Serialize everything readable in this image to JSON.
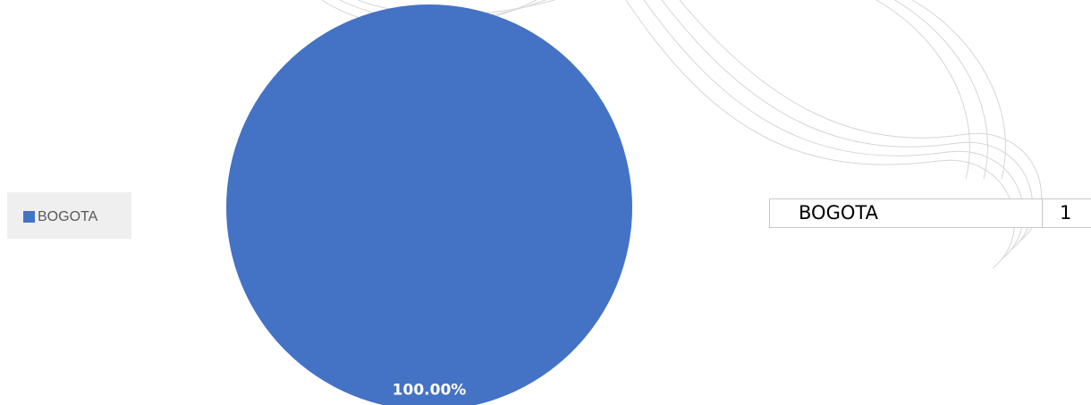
{
  "chart_data": {
    "type": "pie",
    "categories": [
      "BOGOTA"
    ],
    "values": [
      100
    ],
    "value_labels": [
      "100.00%"
    ],
    "colors": [
      "#4472c4"
    ],
    "legend": "left"
  },
  "table": {
    "rows": [
      [
        "BOGOTA",
        1
      ]
    ]
  }
}
